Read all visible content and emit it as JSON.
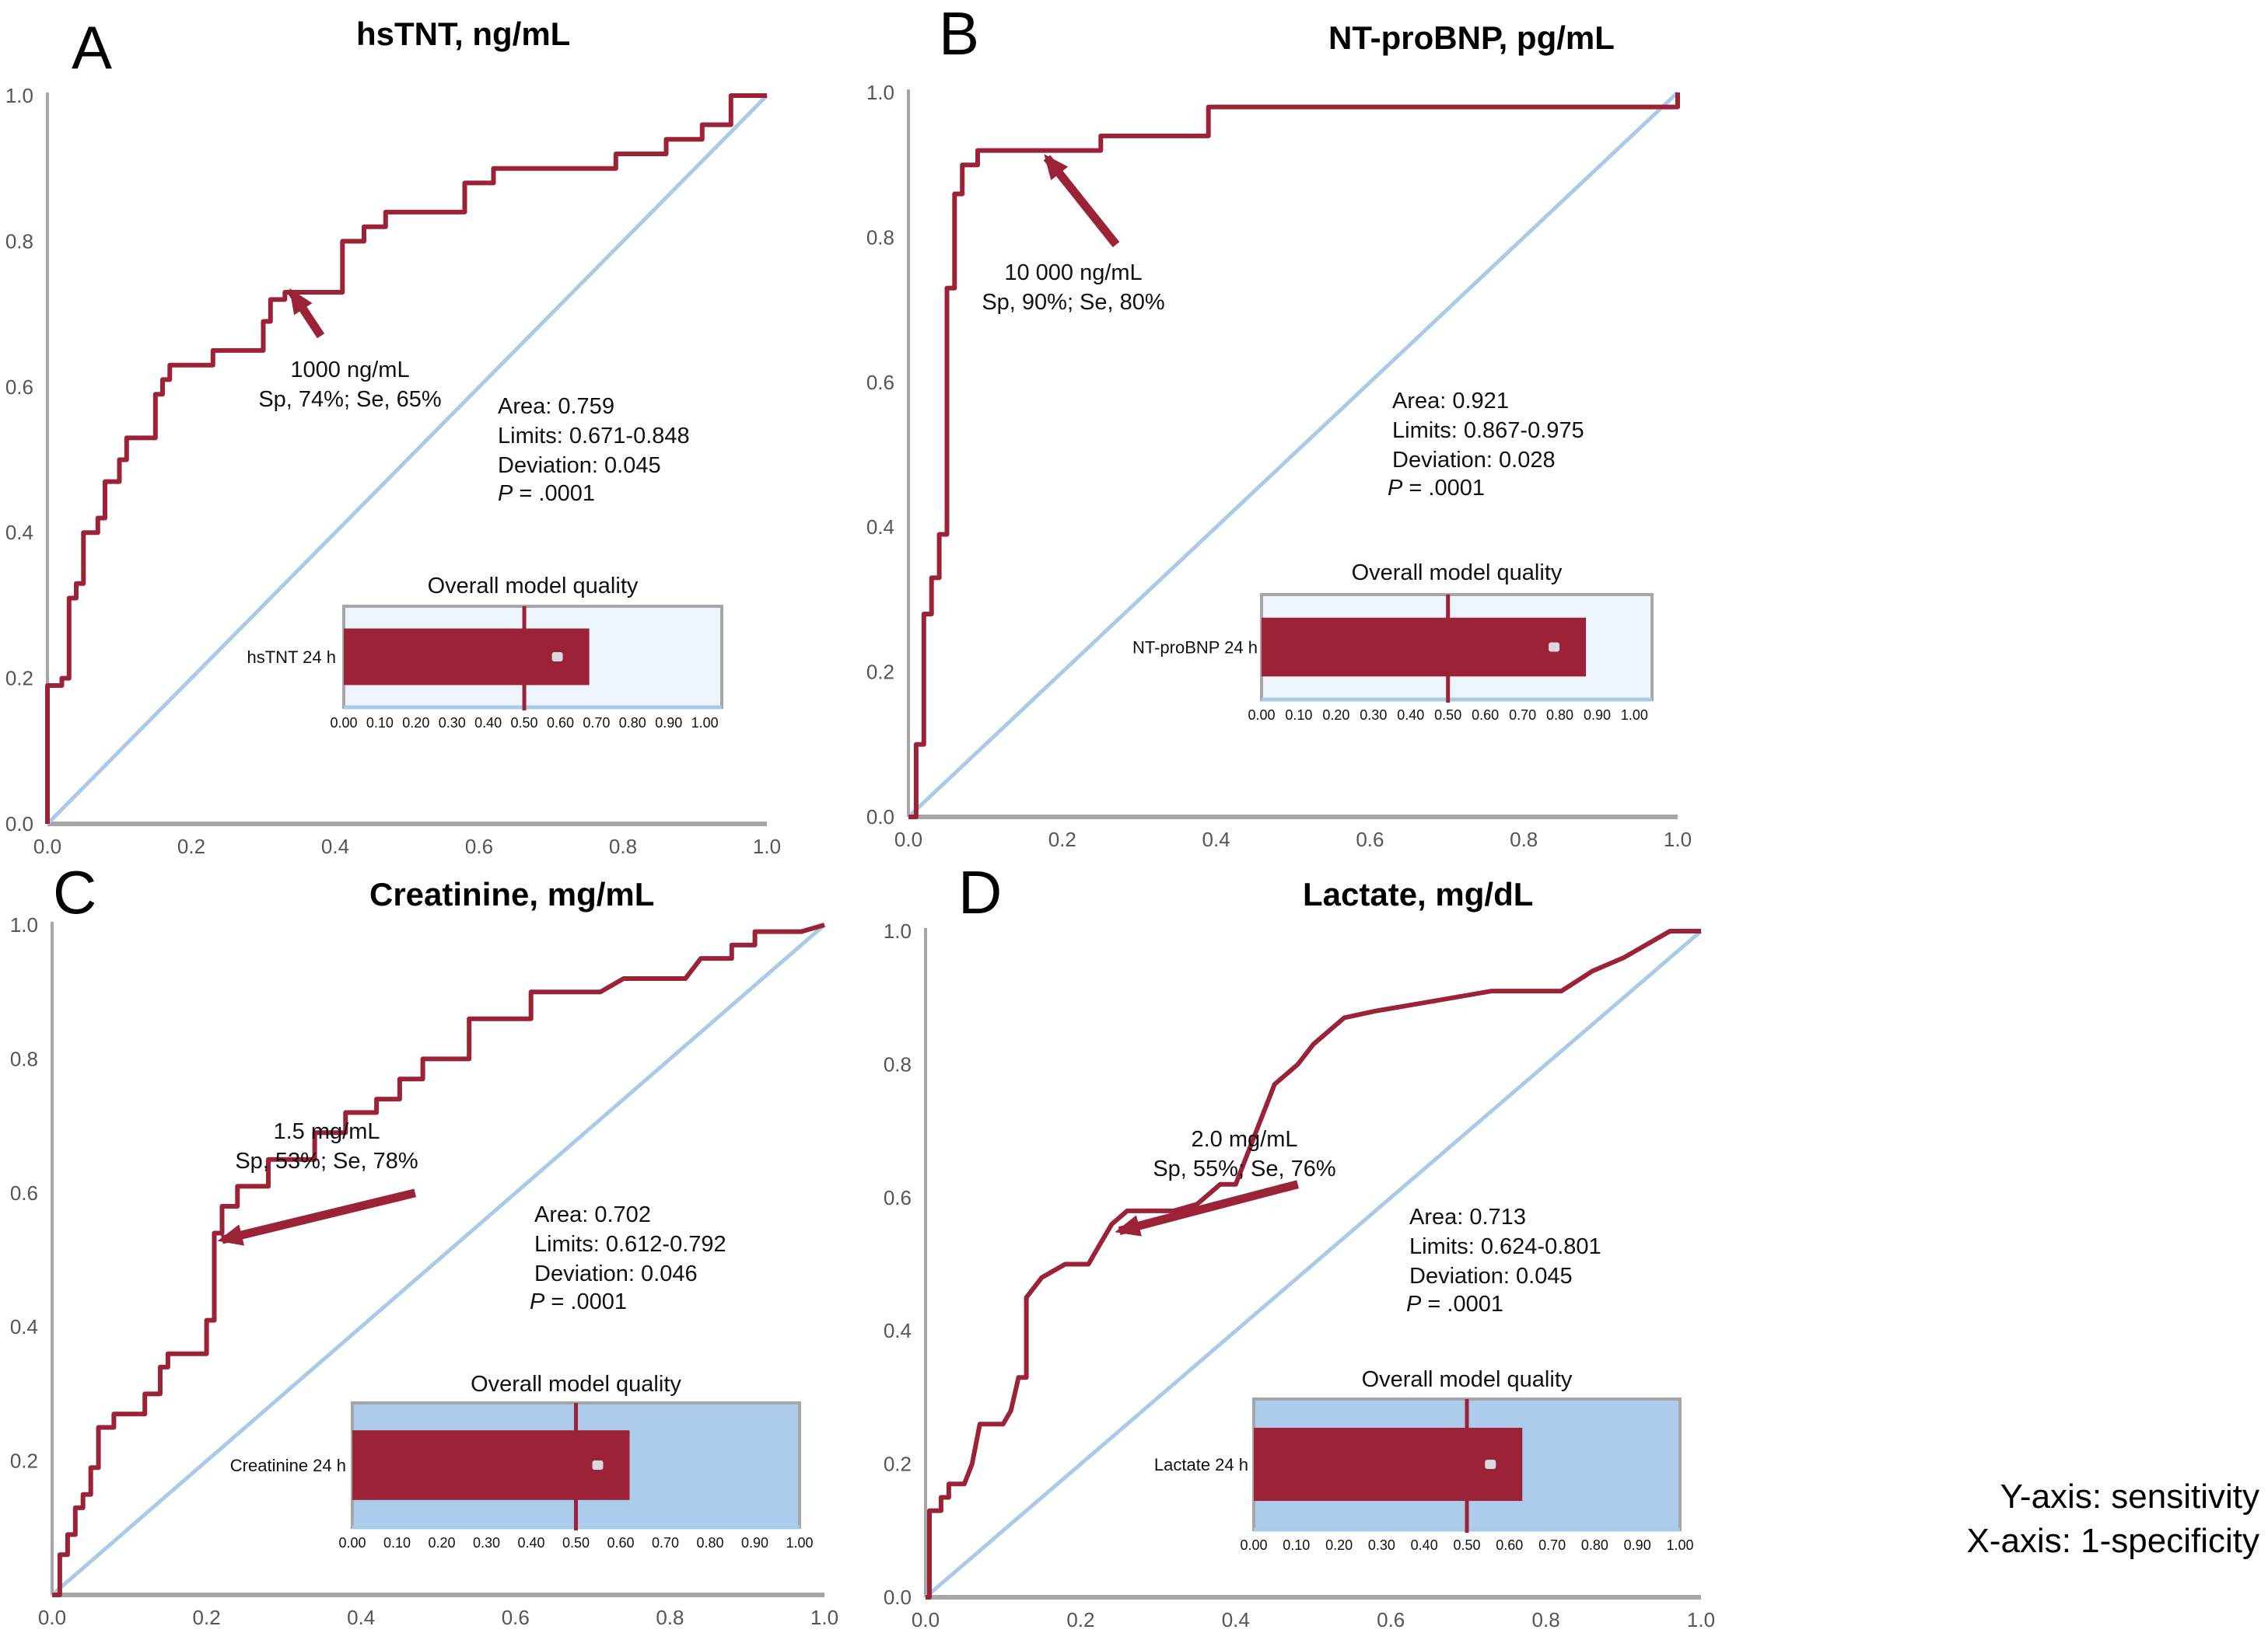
{
  "colors": {
    "roc_curve": "#9b2237",
    "reference_line": "#a9cbe8",
    "axis": "#a6a6a6",
    "inset_bg_light": "#eef4fb",
    "inset_bg_blue": "#adcbea",
    "inset_bar": "#9b2237",
    "inset_border": "#a6a6a6"
  },
  "axis_note": {
    "y": "Y-axis: sensitivity",
    "x": "X-axis: 1-specificity"
  },
  "chart_data": [
    {
      "type": "line",
      "panel": "A",
      "title": "hsTNT, ng/mL",
      "xlabel": "1-specificity",
      "ylabel": "sensitivity",
      "xlim": [
        0,
        1
      ],
      "ylim": [
        0,
        1
      ],
      "xticks": [
        "0.0",
        "0.2",
        "0.4",
        "0.6",
        "0.8",
        "1.0"
      ],
      "yticks": [
        "0.0",
        "0.2",
        "0.4",
        "0.6",
        "0.8",
        "1.0"
      ],
      "series": [
        {
          "name": "ROC curve",
          "x": [
            0,
            0,
            0.02,
            0.02,
            0.03,
            0.03,
            0.04,
            0.04,
            0.05,
            0.05,
            0.07,
            0.07,
            0.08,
            0.08,
            0.1,
            0.1,
            0.11,
            0.11,
            0.15,
            0.15,
            0.16,
            0.16,
            0.17,
            0.17,
            0.23,
            0.23,
            0.3,
            0.3,
            0.31,
            0.31,
            0.33,
            0.33,
            0.41,
            0.41,
            0.44,
            0.44,
            0.47,
            0.47,
            0.58,
            0.58,
            0.62,
            0.62,
            0.79,
            0.79,
            0.86,
            0.86,
            0.91,
            0.91,
            0.95,
            0.95,
            1
          ],
          "y": [
            0,
            0.19,
            0.19,
            0.2,
            0.2,
            0.31,
            0.31,
            0.33,
            0.33,
            0.4,
            0.4,
            0.42,
            0.42,
            0.47,
            0.47,
            0.5,
            0.5,
            0.53,
            0.53,
            0.59,
            0.59,
            0.61,
            0.61,
            0.63,
            0.63,
            0.65,
            0.65,
            0.69,
            0.69,
            0.72,
            0.72,
            0.73,
            0.73,
            0.8,
            0.8,
            0.82,
            0.82,
            0.84,
            0.84,
            0.88,
            0.88,
            0.9,
            0.9,
            0.92,
            0.92,
            0.94,
            0.94,
            0.96,
            0.96,
            1,
            1
          ]
        },
        {
          "name": "Reference line",
          "x": [
            0,
            1
          ],
          "y": [
            0,
            1
          ]
        }
      ],
      "annotation": {
        "line1": "1000 ng/mL",
        "line2": "Sp, 74%; Se, 65%",
        "point": [
          0.34,
          0.73
        ],
        "from": [
          0.38,
          0.67
        ]
      },
      "stats": {
        "area": "Area: 0.759",
        "limits": "Limits: 0.671-0.848",
        "deviation": "Deviation: 0.045",
        "p_label": "P",
        "p_value": " = .0001"
      },
      "inset": {
        "title": "Overall model quality",
        "label": "hsTNT 24 h",
        "value": 0.68,
        "reference": 0.5,
        "style": "light",
        "ticks": [
          "0.00",
          "0.10",
          "0.20",
          "0.30",
          "0.40",
          "0.50",
          "0.60",
          "0.70",
          "0.80",
          "0.90",
          "1.00"
        ]
      }
    },
    {
      "type": "line",
      "panel": "B",
      "title": "NT-proBNP, pg/mL",
      "xlabel": "1-specificity",
      "ylabel": "sensitivity",
      "xlim": [
        0,
        1
      ],
      "ylim": [
        0,
        1
      ],
      "xticks": [
        "0.0",
        "0.2",
        "0.4",
        "0.6",
        "0.8",
        "1.0"
      ],
      "yticks": [
        "0.0",
        "0.2",
        "0.4",
        "0.6",
        "0.8",
        "1.0"
      ],
      "series": [
        {
          "name": "ROC curve",
          "x": [
            0,
            0.01,
            0.01,
            0.02,
            0.02,
            0.03,
            0.03,
            0.04,
            0.04,
            0.05,
            0.05,
            0.06,
            0.06,
            0.07,
            0.07,
            0.09,
            0.09,
            0.25,
            0.25,
            0.39,
            0.39,
            1,
            1
          ],
          "y": [
            0,
            0,
            0.1,
            0.1,
            0.28,
            0.28,
            0.33,
            0.33,
            0.39,
            0.39,
            0.73,
            0.73,
            0.86,
            0.86,
            0.9,
            0.9,
            0.92,
            0.92,
            0.94,
            0.94,
            0.98,
            0.98,
            1
          ]
        },
        {
          "name": "Reference line",
          "x": [
            0,
            1
          ],
          "y": [
            0,
            1
          ]
        }
      ],
      "annotation": {
        "line1": "10 000 ng/mL",
        "line2": "Sp, 90%; Se, 80%",
        "point": [
          0.18,
          0.91
        ],
        "from": [
          0.27,
          0.79
        ]
      },
      "stats": {
        "area": "Area: 0.921",
        "limits": "Limits: 0.867-0.975",
        "deviation": "Deviation: 0.028",
        "p_label": "P",
        "p_value": " = .0001"
      },
      "inset": {
        "title": "Overall model quality",
        "label": "NT-proBNP 24 h",
        "value": 0.87,
        "reference": 0.5,
        "style": "light",
        "ticks": [
          "0.00",
          "0.10",
          "0.20",
          "0.30",
          "0.40",
          "0.50",
          "0.60",
          "0.70",
          "0.80",
          "0.90",
          "1.00"
        ]
      }
    },
    {
      "type": "line",
      "panel": "C",
      "title": "Creatinine, mg/mL",
      "xlabel": "1-specificity",
      "ylabel": "sensitivity",
      "xlim": [
        0,
        1
      ],
      "ylim": [
        0,
        1
      ],
      "xticks": [
        "0.0",
        "0.2",
        "0.4",
        "0.6",
        "0.8",
        "1.0"
      ],
      "yticks": [
        "",
        "0.2",
        "0.4",
        "0.6",
        "0.8",
        "1.0"
      ],
      "series": [
        {
          "name": "ROC curve",
          "x": [
            0,
            0.01,
            0.01,
            0.02,
            0.02,
            0.03,
            0.03,
            0.04,
            0.04,
            0.05,
            0.05,
            0.06,
            0.06,
            0.08,
            0.08,
            0.12,
            0.12,
            0.14,
            0.14,
            0.15,
            0.15,
            0.2,
            0.2,
            0.21,
            0.21,
            0.22,
            0.22,
            0.24,
            0.24,
            0.28,
            0.28,
            0.34,
            0.34,
            0.38,
            0.38,
            0.42,
            0.42,
            0.45,
            0.45,
            0.48,
            0.48,
            0.54,
            0.54,
            0.62,
            0.62,
            0.71,
            0.74,
            0.82,
            0.84,
            0.88,
            0.88,
            0.91,
            0.91,
            0.97,
            1
          ],
          "y": [
            0,
            0,
            0.06,
            0.06,
            0.09,
            0.09,
            0.13,
            0.13,
            0.15,
            0.15,
            0.19,
            0.19,
            0.25,
            0.25,
            0.27,
            0.27,
            0.3,
            0.3,
            0.34,
            0.34,
            0.36,
            0.36,
            0.41,
            0.41,
            0.54,
            0.54,
            0.58,
            0.58,
            0.61,
            0.61,
            0.65,
            0.65,
            0.69,
            0.69,
            0.72,
            0.72,
            0.74,
            0.74,
            0.77,
            0.77,
            0.8,
            0.8,
            0.86,
            0.86,
            0.9,
            0.9,
            0.92,
            0.92,
            0.95,
            0.95,
            0.97,
            0.97,
            0.99,
            0.99,
            1
          ]
        },
        {
          "name": "Reference line",
          "x": [
            0,
            1
          ],
          "y": [
            0,
            1
          ]
        }
      ],
      "annotation": {
        "line1": "1.5 mg/mL",
        "line2": "Sp, 53%; Se, 78%",
        "point": [
          0.22,
          0.53
        ],
        "from": [
          0.47,
          0.6
        ]
      },
      "stats": {
        "area": "Area: 0.702",
        "limits": "Limits: 0.612-0.792",
        "deviation": "Deviation: 0.046",
        "p_label": "P",
        "p_value": " = .0001"
      },
      "inset": {
        "title": "Overall model quality",
        "label": "Creatinine 24 h",
        "value": 0.62,
        "reference": 0.5,
        "style": "blue",
        "ticks": [
          "0.00",
          "0.10",
          "0.20",
          "0.30",
          "0.40",
          "0.50",
          "0.60",
          "0.70",
          "0.80",
          "0.90",
          "1.00"
        ]
      }
    },
    {
      "type": "line",
      "panel": "D",
      "title": "Lactate, mg/dL",
      "xlabel": "1-specificity",
      "ylabel": "sensitivity",
      "xlim": [
        0,
        1
      ],
      "ylim": [
        0,
        1
      ],
      "xticks": [
        "0.0",
        "0.2",
        "0.4",
        "0.6",
        "0.8",
        "1.0"
      ],
      "yticks": [
        "0.0",
        "0.2",
        "0.4",
        "0.6",
        "0.8",
        "1.0"
      ],
      "series": [
        {
          "name": "ROC curve",
          "x": [
            0,
            0.005,
            0.005,
            0.02,
            0.02,
            0.03,
            0.03,
            0.05,
            0.06,
            0.07,
            0.1,
            0.11,
            0.12,
            0.13,
            0.13,
            0.15,
            0.18,
            0.21,
            0.22,
            0.24,
            0.26,
            0.32,
            0.35,
            0.38,
            0.4,
            0.42,
            0.45,
            0.47,
            0.48,
            0.5,
            0.54,
            0.58,
            0.63,
            0.73,
            0.82,
            0.86,
            0.9,
            0.96,
            1
          ],
          "y": [
            0,
            0,
            0.13,
            0.13,
            0.15,
            0.15,
            0.17,
            0.17,
            0.2,
            0.26,
            0.26,
            0.28,
            0.33,
            0.33,
            0.45,
            0.48,
            0.5,
            0.5,
            0.52,
            0.56,
            0.58,
            0.58,
            0.59,
            0.62,
            0.62,
            0.68,
            0.77,
            0.79,
            0.8,
            0.83,
            0.87,
            0.88,
            0.89,
            0.91,
            0.91,
            0.94,
            0.96,
            1,
            1
          ]
        },
        {
          "name": "Reference line",
          "x": [
            0,
            1
          ],
          "y": [
            0,
            1
          ]
        }
      ],
      "annotation": {
        "line1": "2.0 mg/mL",
        "line2": "Sp, 55%; Se, 76%",
        "point": [
          0.25,
          0.55
        ],
        "from": [
          0.48,
          0.62
        ]
      },
      "stats": {
        "area": "Area: 0.713",
        "limits": "Limits: 0.624-0.801",
        "deviation": "Deviation: 0.045",
        "p_label": "P",
        "p_value": " = .0001"
      },
      "inset": {
        "title": "Overall model quality",
        "label": "Lactate 24 h",
        "value": 0.63,
        "reference": 0.5,
        "style": "blue",
        "ticks": [
          "0.00",
          "0.10",
          "0.20",
          "0.30",
          "0.40",
          "0.50",
          "0.60",
          "0.70",
          "0.80",
          "0.90",
          "1.00"
        ]
      }
    }
  ]
}
